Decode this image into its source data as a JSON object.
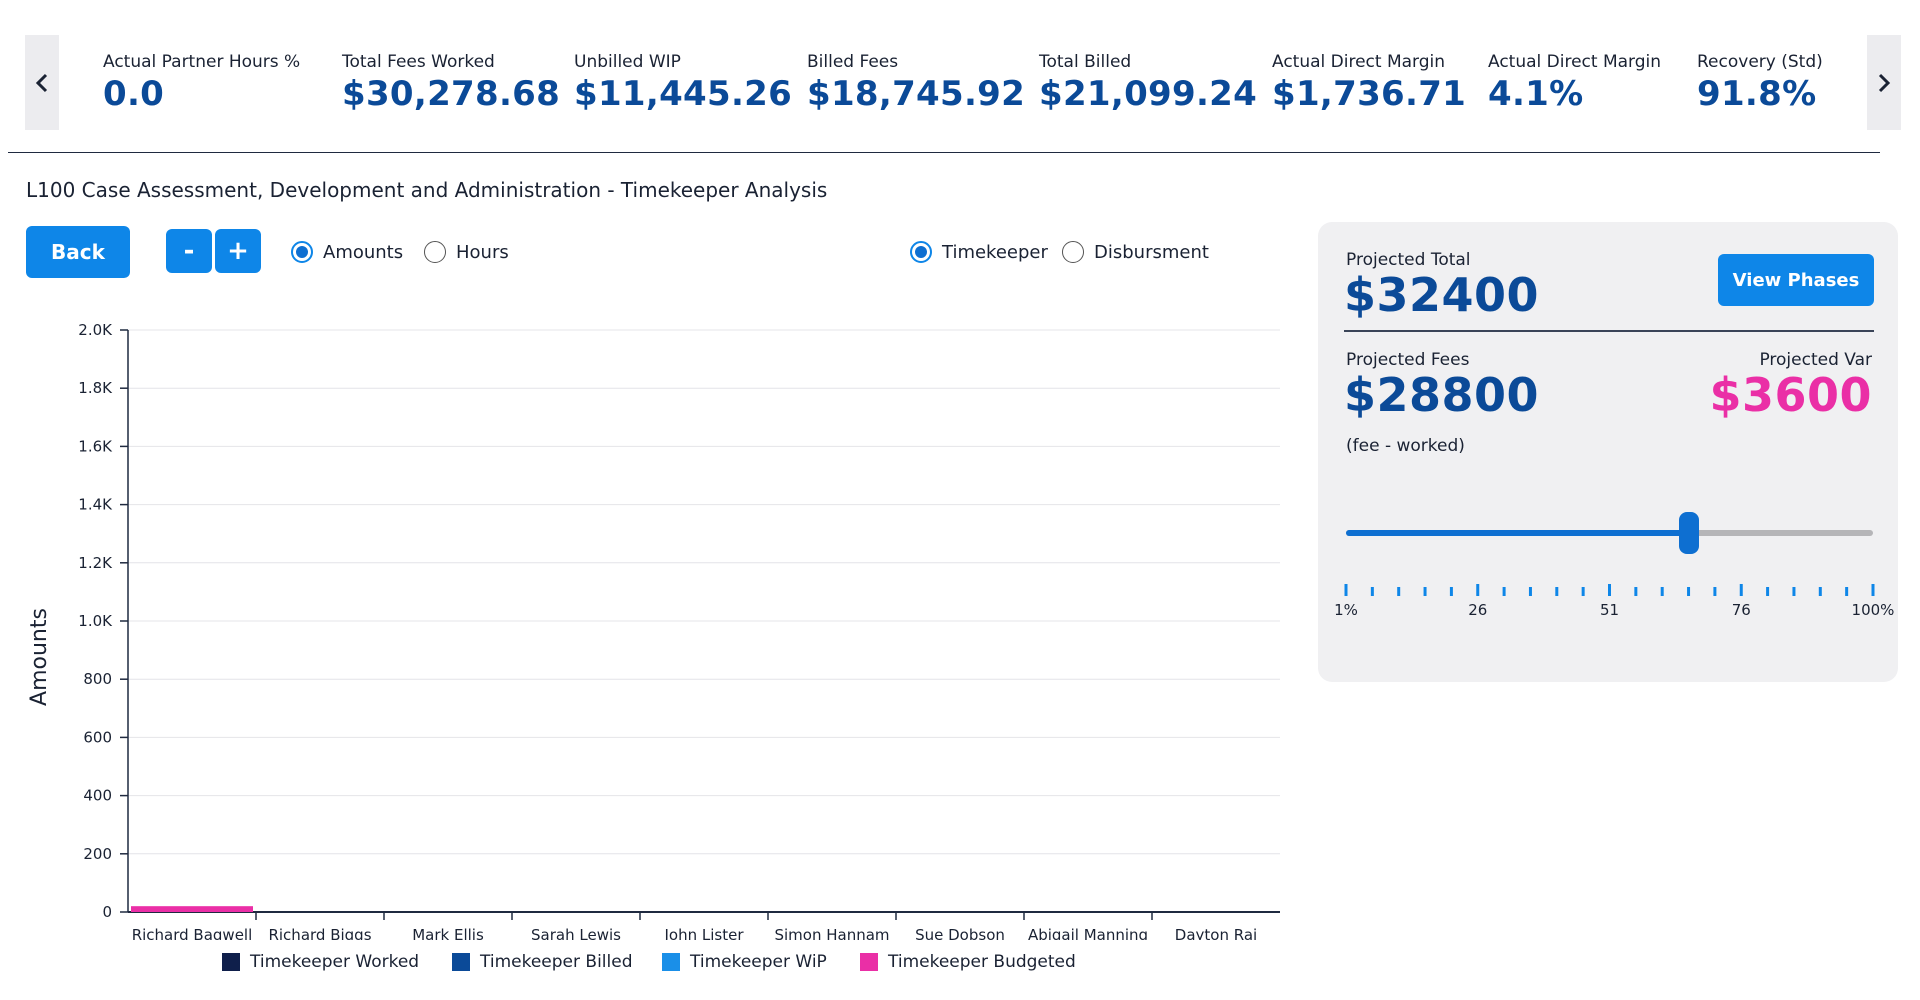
{
  "kpis": [
    {
      "label": "Actual Partner Hours %",
      "value": "0.0"
    },
    {
      "label": "Total Fees Worked",
      "value": "$30,278.68"
    },
    {
      "label": "Unbilled WIP",
      "value": "$11,445.26"
    },
    {
      "label": "Billed Fees",
      "value": "$18,745.92"
    },
    {
      "label": "Total Billed",
      "value": "$21,099.24"
    },
    {
      "label": "Actual Direct Margin",
      "value": "$1,736.71"
    },
    {
      "label": "Actual Direct Margin",
      "value": "4.1%"
    },
    {
      "label": "Recovery (Std)",
      "value": "91.8%"
    }
  ],
  "icons": {
    "prev": "chevron-left-icon",
    "next": "chevron-right-icon"
  },
  "page_title": "L100 Case Assessment, Development and Administration - Timekeeper Analysis",
  "controls": {
    "back_label": "Back",
    "zoom_out_label": "-",
    "zoom_in_label": "+",
    "measure_options": [
      {
        "label": "Amounts",
        "selected": true
      },
      {
        "label": "Hours",
        "selected": false
      }
    ],
    "breakdown_options": [
      {
        "label": "Timekeeper",
        "selected": true
      },
      {
        "label": "Disbursment",
        "selected": false
      }
    ]
  },
  "chart_data": {
    "type": "bar",
    "ylabel": "Amounts",
    "ylim": [
      0,
      2000
    ],
    "yticks": [
      "0",
      "200",
      "400",
      "600",
      "800",
      "1.0K",
      "1.2K",
      "1.4K",
      "1.6K",
      "1.8K",
      "2.0K"
    ],
    "categories": [
      "Richard Bagwell",
      "Richard Biggs",
      "Mark Ellis",
      "Sarah Lewis",
      "John Lister",
      "Simon Hannam",
      "Sue Dobson",
      "Abigail Manning",
      "Dayton Rai"
    ],
    "series": [
      {
        "name": "Timekeeper Worked",
        "color": "#0f1f4b",
        "values": [
          0,
          0,
          0,
          0,
          0,
          0,
          0,
          0,
          0
        ]
      },
      {
        "name": "Timekeeper Billed",
        "color": "#0b4a98",
        "values": [
          0,
          0,
          0,
          0,
          0,
          0,
          0,
          0,
          0
        ]
      },
      {
        "name": "Timekeeper WiP",
        "color": "#1a8fe8",
        "values": [
          0,
          0,
          0,
          0,
          0,
          0,
          0,
          0,
          0
        ]
      },
      {
        "name": "Timekeeper Budgeted",
        "color": "#ea2fa6",
        "values": [
          20,
          0,
          0,
          0,
          0,
          0,
          0,
          0,
          0
        ]
      }
    ],
    "grid": true,
    "legend": "bottom"
  },
  "panel": {
    "projected_total_label": "Projected Total",
    "projected_total_value": "$32400",
    "view_phases_label": "View Phases",
    "projected_fees_label": "Projected Fees",
    "projected_fees_value": "$28800",
    "projected_var_label": "Projected Var",
    "projected_var_value": "$3600",
    "fee_note": "(fee - worked)",
    "slider_value_percent": 65,
    "slider_labels": [
      "1%",
      "26",
      "51",
      "76",
      "100%"
    ],
    "colors": {
      "accent": "#0e86e8",
      "value": "#0b4a98",
      "variance": "#ea2fa6"
    }
  }
}
